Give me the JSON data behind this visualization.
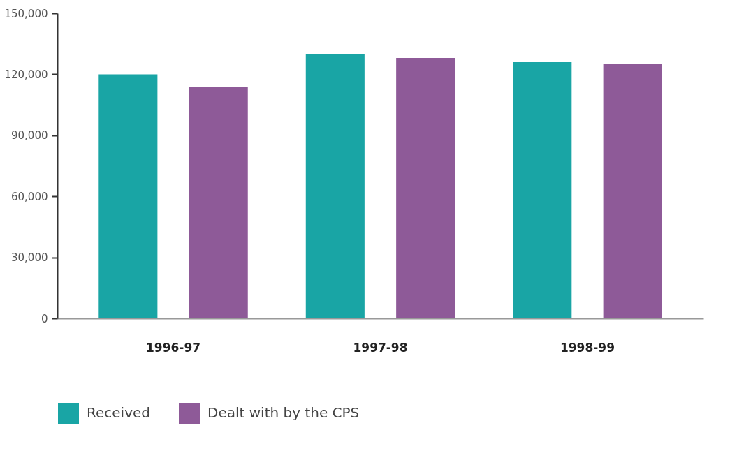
{
  "chart_data": {
    "type": "bar",
    "categories": [
      "1996-97",
      "1997-98",
      "1998-99"
    ],
    "series": [
      {
        "name": "Received",
        "color": "#19a5a5",
        "values": [
          120000,
          130000,
          126000
        ]
      },
      {
        "name": "Dealt with by the CPS",
        "color": "#8e5a98",
        "values": [
          114000,
          128000,
          125000
        ]
      }
    ],
    "ylim": [
      0,
      150000
    ],
    "yticks": [
      0,
      {
        "value": 30000,
        "label": "30,000"
      },
      {
        "value": 60000,
        "label": "60,000"
      },
      {
        "value": 90000,
        "label": "90,000"
      },
      {
        "value": 120000,
        "label": "120,000"
      },
      {
        "value": 150000,
        "label": "150,000"
      }
    ],
    "grid": false,
    "legend": "bottom"
  }
}
